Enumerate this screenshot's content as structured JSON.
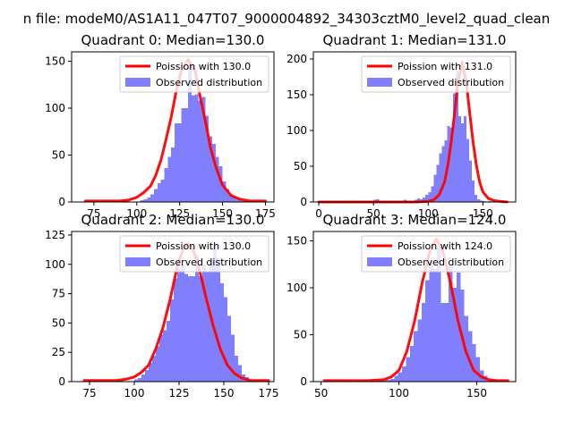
{
  "figure": {
    "suptitle": "n file: modeM0/AS1A11_047T07_9000004892_34303cztM0_level2_quad_clean"
  },
  "colors": {
    "hist": "#8080ff",
    "curve": "#ff0000",
    "curve_overlap": "#ff8080",
    "axis": "#000000",
    "background": "#ffffff"
  },
  "chart_data": [
    {
      "type": "bar",
      "title": "Quadrant 0: Median=130.0",
      "xlim": [
        62,
        180
      ],
      "ylim": [
        0,
        160
      ],
      "xticks": [
        75,
        100,
        125,
        150,
        175
      ],
      "yticks": [
        0,
        50,
        100,
        150
      ],
      "legend": {
        "placement": "top-right",
        "line_label": "Poission with 130.0",
        "hist_label": "Observed distribution"
      },
      "hist": {
        "bin_start": 70,
        "bin_width": 2,
        "counts": [
          2,
          2,
          0,
          0,
          0,
          0,
          0,
          0,
          0,
          0,
          1,
          2,
          0,
          0,
          0,
          0,
          2,
          3,
          5,
          8,
          14,
          20,
          24,
          36,
          48,
          58,
          84,
          84,
          100,
          100,
          148,
          114,
          115,
          108,
          112,
          92,
          70,
          62,
          48,
          38,
          22,
          14,
          8,
          6,
          4,
          2,
          1,
          1
        ]
      },
      "poisson": {
        "x": [
          70,
          90,
          95,
          100,
          104,
          108,
          111,
          114,
          117,
          120,
          123,
          126,
          130,
          134,
          137,
          140,
          143,
          146,
          150,
          155,
          160,
          166,
          170,
          175
        ],
        "y": [
          1,
          1,
          2,
          5,
          10,
          17,
          28,
          44,
          66,
          90,
          118,
          140,
          152,
          140,
          112,
          86,
          58,
          38,
          18,
          7,
          3,
          1,
          1,
          1
        ]
      }
    },
    {
      "type": "bar",
      "title": "Quadrant 1: Median=131.0",
      "xlim": [
        -5,
        180
      ],
      "ylim": [
        0,
        210
      ],
      "xticks": [
        0,
        50,
        100,
        150
      ],
      "yticks": [
        0,
        50,
        100,
        150,
        200
      ],
      "legend": {
        "placement": "top-right",
        "line_label": "Poission with 131.0",
        "hist_label": "Observed distribution"
      },
      "hist": {
        "bin_start": 0,
        "bin_width": 2.5,
        "counts": [
          0,
          0,
          0,
          0,
          0,
          1,
          0,
          0,
          0,
          0,
          0,
          0,
          0,
          0,
          0,
          0,
          1,
          0,
          0,
          0,
          3,
          4,
          2,
          2,
          1,
          2,
          1,
          1,
          0,
          1,
          2,
          3,
          2,
          2,
          1,
          3,
          5,
          4,
          6,
          10,
          14,
          22,
          38,
          52,
          68,
          78,
          86,
          106,
          104,
          152,
          184,
          120,
          110,
          120,
          88,
          58,
          30,
          10,
          4,
          2,
          1,
          0,
          1,
          0,
          0,
          0,
          0,
          0,
          0,
          0
        ]
      },
      "poisson": {
        "x": [
          0,
          60,
          90,
          100,
          105,
          110,
          115,
          118,
          121,
          124,
          127,
          131,
          135,
          138,
          141,
          144,
          147,
          150,
          155,
          160,
          165,
          172
        ],
        "y": [
          0,
          0,
          0,
          1,
          3,
          10,
          28,
          52,
          84,
          122,
          166,
          196,
          166,
          124,
          84,
          52,
          28,
          14,
          5,
          2,
          1,
          0
        ]
      }
    },
    {
      "type": "bar",
      "title": "Quadrant 2: Median=130.0",
      "xlim": [
        65,
        178
      ],
      "ylim": [
        0,
        128
      ],
      "xticks": [
        75,
        100,
        125,
        150,
        175
      ],
      "yticks": [
        0,
        25,
        50,
        75,
        100,
        125
      ],
      "legend": {
        "placement": "top-right",
        "line_label": "Poission with 130.0",
        "hist_label": "Observed distribution"
      },
      "hist": {
        "bin_start": 72,
        "bin_width": 2,
        "counts": [
          2,
          2,
          2,
          2,
          0,
          0,
          0,
          0,
          0,
          0,
          0,
          0,
          0,
          0,
          2,
          3,
          6,
          10,
          16,
          22,
          30,
          40,
          44,
          52,
          70,
          88,
          96,
          100,
          92,
          90,
          90,
          108,
          90,
          100,
          94,
          104,
          116,
          104,
          84,
          72,
          56,
          40,
          22,
          14,
          6,
          4,
          2,
          1,
          1
        ]
      },
      "poisson": {
        "x": [
          72,
          90,
          95,
          100,
          104,
          108,
          112,
          116,
          120,
          124,
          127,
          130,
          133,
          136,
          140,
          144,
          148,
          152,
          156,
          160,
          165,
          170,
          175
        ],
        "y": [
          1,
          1,
          2,
          4,
          8,
          14,
          28,
          46,
          70,
          98,
          112,
          118,
          112,
          98,
          72,
          48,
          28,
          14,
          7,
          3,
          1,
          1,
          1
        ]
      }
    },
    {
      "type": "bar",
      "title": "Quadrant 3: Median=124.0",
      "xlim": [
        45,
        175
      ],
      "ylim": [
        0,
        160
      ],
      "xticks": [
        50,
        100,
        150
      ],
      "yticks": [
        0,
        50,
        100,
        150
      ],
      "legend": {
        "placement": "top-right",
        "line_label": "Poission with 124.0",
        "hist_label": "Observed distribution"
      },
      "hist": {
        "bin_start": 52,
        "bin_width": 2.5,
        "counts": [
          2,
          2,
          0,
          0,
          2,
          2,
          0,
          0,
          0,
          0,
          2,
          0,
          0,
          0,
          1,
          2,
          2,
          3,
          6,
          10,
          16,
          26,
          38,
          54,
          66,
          84,
          108,
          128,
          120,
          144,
          84,
          84,
          124,
          100,
          116,
          98,
          70,
          54,
          40,
          26,
          12,
          6,
          2,
          2,
          1,
          1,
          0
        ]
      },
      "poisson": {
        "x": [
          52,
          70,
          80,
          90,
          95,
          100,
          105,
          110,
          115,
          120,
          124,
          128,
          133,
          138,
          143,
          148,
          153,
          158,
          163,
          170
        ],
        "y": [
          1,
          1,
          1,
          2,
          5,
          12,
          32,
          64,
          106,
          140,
          152,
          140,
          106,
          64,
          32,
          12,
          5,
          2,
          1,
          1
        ]
      }
    }
  ]
}
